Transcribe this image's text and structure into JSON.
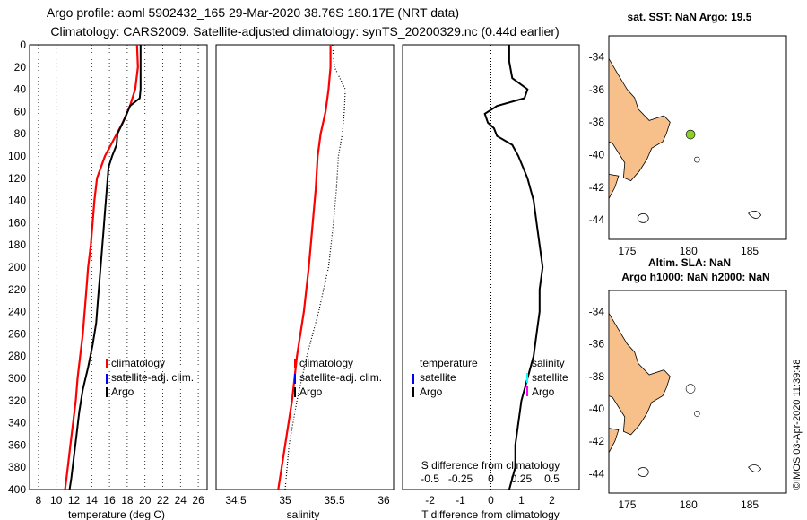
{
  "header": {
    "title_line1": "Argo profile: aoml 5902432_165 29-Mar-2020 38.76S 180.17E (NRT data)",
    "title_line2": "Climatology: CARS2009. Satellite-adjusted climatology: synTS_20200329.nc (0.44d earlier)"
  },
  "colors": {
    "climatology": "#ff0000",
    "satellite": "#0000ff",
    "argo": "#000000",
    "salinity_marker": "#ff00ff",
    "temp_marker_cyan": "#00ffff",
    "land": "#f7c08a",
    "argo_sst_dot": "#8ccf2a"
  },
  "footer": {
    "credit": "©IMOS 03-Apr-2020 11:39:48"
  },
  "chart_data": [
    {
      "type": "line",
      "name": "temperature",
      "xlabel": "temperature (deg C)",
      "ylabel": "",
      "xlim": [
        7,
        27
      ],
      "ylim": [
        400,
        0
      ],
      "xticks": [
        "8",
        "10",
        "12",
        "14",
        "16",
        "18",
        "20",
        "22",
        "24",
        "26"
      ],
      "yticks": [
        "0",
        "20",
        "40",
        "60",
        "80",
        "100",
        "120",
        "140",
        "160",
        "180",
        "200",
        "220",
        "240",
        "260",
        "280",
        "300",
        "320",
        "340",
        "360",
        "380",
        "400"
      ],
      "legend": [
        "climatology",
        "satellite-adj. clim.",
        "Argo"
      ],
      "series": [
        {
          "name": "climatology",
          "depth": [
            0,
            20,
            40,
            55,
            70,
            85,
            100,
            120,
            140,
            160,
            180,
            200,
            220,
            240,
            260,
            280,
            300,
            320,
            340,
            360,
            380,
            400
          ],
          "values": [
            19.1,
            19.2,
            18.9,
            18.3,
            17.5,
            16.5,
            15.5,
            14.6,
            14.3,
            14.1,
            13.9,
            13.6,
            13.4,
            13.2,
            13.0,
            12.7,
            12.4,
            12.2,
            11.9,
            11.6,
            11.3,
            11.0
          ]
        },
        {
          "name": "Argo",
          "depth": [
            0,
            20,
            40,
            48,
            55,
            65,
            75,
            80,
            90,
            100,
            110,
            130,
            150,
            170,
            190,
            210,
            230,
            250,
            270,
            290,
            310,
            330,
            350,
            370,
            390,
            400
          ],
          "values": [
            19.5,
            19.5,
            19.5,
            19.4,
            18.3,
            17.8,
            17.2,
            16.9,
            16.8,
            16.3,
            15.9,
            15.7,
            15.5,
            15.3,
            15.1,
            14.9,
            14.7,
            14.5,
            14.1,
            13.6,
            13.0,
            12.6,
            12.3,
            12.0,
            11.7,
            11.5
          ]
        }
      ]
    },
    {
      "type": "line",
      "name": "salinity",
      "xlabel": "salinity",
      "xlim": [
        34.3,
        36.1
      ],
      "ylim": [
        400,
        0
      ],
      "xticks": [
        "34.5",
        "35",
        "35.5",
        "36"
      ],
      "legend": [
        "climatology",
        "satellite-adj. clim.",
        "Argo"
      ],
      "series": [
        {
          "name": "climatology",
          "depth": [
            0,
            20,
            40,
            60,
            80,
            100,
            130,
            160,
            200,
            240,
            280,
            320,
            360,
            400
          ],
          "values": [
            35.46,
            35.46,
            35.44,
            35.41,
            35.36,
            35.33,
            35.31,
            35.28,
            35.24,
            35.19,
            35.12,
            35.07,
            35.0,
            34.93
          ]
        },
        {
          "name": "Argo",
          "depth": [
            0,
            20,
            40,
            60,
            80,
            100,
            130,
            160,
            200,
            240,
            280,
            320,
            360,
            400
          ],
          "values": [
            35.48,
            35.5,
            35.61,
            35.6,
            35.58,
            35.54,
            35.52,
            35.49,
            35.44,
            35.34,
            35.22,
            35.12,
            35.04,
            35.0
          ]
        }
      ]
    },
    {
      "type": "line",
      "name": "difference",
      "xlabel": "T difference from climatology",
      "x2label": "S difference from climatology",
      "xlim": [
        -2.9,
        2.9
      ],
      "ylim": [
        400,
        0
      ],
      "xticks": [
        "-2",
        "-1",
        "0",
        "1",
        "2"
      ],
      "x2ticks": [
        "-0.5",
        "-0.25",
        "0",
        "0.25",
        "0.5"
      ],
      "legend_left": [
        "temperature",
        "satellite",
        "Argo"
      ],
      "legend_right": [
        "salinity",
        "satellite",
        "Argo"
      ],
      "series": [
        {
          "name": "T difference",
          "depth": [
            0,
            15,
            30,
            40,
            48,
            55,
            62,
            70,
            75,
            82,
            90,
            100,
            120,
            140,
            160,
            180,
            200,
            220,
            240,
            260,
            280,
            300,
            320,
            340,
            360,
            380,
            400
          ],
          "values": [
            0.6,
            0.6,
            0.7,
            1.2,
            1.1,
            0.2,
            -0.2,
            -0.1,
            0.1,
            0.2,
            0.7,
            0.9,
            1.2,
            1.4,
            1.5,
            1.6,
            1.7,
            1.6,
            1.6,
            1.5,
            1.4,
            1.2,
            1.0,
            0.9,
            0.8,
            0.8,
            0.6
          ]
        }
      ]
    },
    {
      "type": "scatter",
      "name": "map_sst",
      "title": "sat. SST: NaN Argo: 19.5",
      "xticks": [
        "175",
        "180",
        "185"
      ],
      "yticks": [
        "-34",
        "-36",
        "-38",
        "-40",
        "-42",
        "-44"
      ],
      "xlim": [
        173.5,
        188.0
      ],
      "ylim": [
        -45.2,
        -32.7
      ],
      "points": [
        {
          "lon": 180.17,
          "lat": -38.76,
          "label": "Argo"
        }
      ]
    },
    {
      "type": "scatter",
      "name": "map_sla",
      "title_line1": "Altim. SLA: NaN",
      "title_line2": "Argo h1000: NaN h2000: NaN",
      "xticks": [
        "175",
        "180",
        "185"
      ],
      "yticks": [
        "-34",
        "-36",
        "-38",
        "-40",
        "-42",
        "-44"
      ],
      "xlim": [
        173.5,
        188.0
      ],
      "ylim": [
        -45.2,
        -32.7
      ],
      "points": [
        {
          "lon": 180.17,
          "lat": -38.76,
          "label": "Argo"
        }
      ]
    }
  ]
}
